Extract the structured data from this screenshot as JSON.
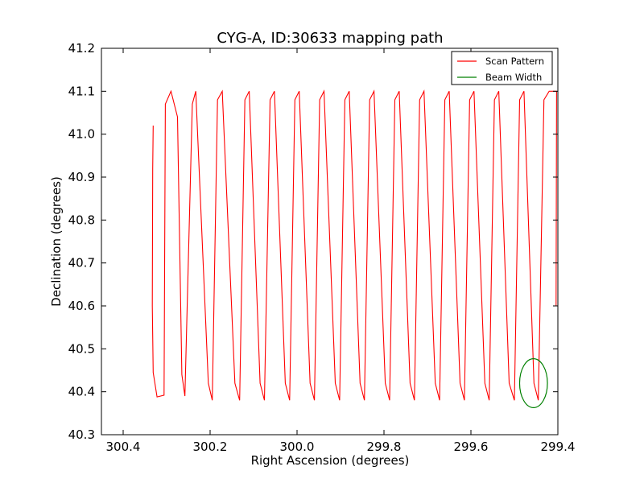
{
  "chart_data": {
    "type": "line",
    "title": "CYG-A, ID:30633 mapping path",
    "xlabel": "Right Ascension (degrees)",
    "ylabel": "Declination (degrees)",
    "xlim": [
      300.45,
      299.4
    ],
    "ylim": [
      40.3,
      41.2
    ],
    "x_ticks": [
      300.4,
      300.2,
      300.0,
      299.8,
      299.6,
      299.4
    ],
    "x_tick_labels": [
      "300.4",
      "300.2",
      "300.0",
      "299.8",
      "299.6",
      "299.4"
    ],
    "y_ticks": [
      40.3,
      40.4,
      40.5,
      40.6,
      40.7,
      40.8,
      40.9,
      41.0,
      41.1,
      41.2
    ],
    "y_tick_labels": [
      "40.3",
      "40.4",
      "40.5",
      "40.6",
      "40.7",
      "40.8",
      "40.9",
      "41.0",
      "41.1",
      "41.2"
    ],
    "grid": false,
    "legend_position": "top-right",
    "series": [
      {
        "name": "Scan Pattern",
        "color": "#ff0000",
        "points": [
          [
            300.331,
            41.02
          ],
          [
            300.332,
            40.92
          ],
          [
            300.333,
            40.6
          ],
          [
            300.331,
            40.445
          ],
          [
            300.322,
            40.388
          ],
          [
            300.306,
            40.392
          ],
          [
            300.303,
            41.07
          ],
          [
            300.29,
            41.1
          ],
          [
            300.275,
            41.04
          ],
          [
            300.265,
            40.44
          ],
          [
            300.258,
            40.39
          ],
          [
            300.241,
            41.07
          ],
          [
            300.233,
            41.1
          ],
          [
            300.204,
            40.42
          ],
          [
            300.195,
            40.38
          ],
          [
            300.183,
            41.08
          ],
          [
            300.172,
            41.1
          ],
          [
            300.143,
            40.42
          ],
          [
            300.132,
            40.38
          ],
          [
            300.12,
            41.08
          ],
          [
            300.11,
            41.1
          ],
          [
            300.085,
            40.42
          ],
          [
            300.075,
            40.38
          ],
          [
            300.062,
            41.08
          ],
          [
            300.052,
            41.1
          ],
          [
            300.027,
            40.42
          ],
          [
            300.017,
            40.38
          ],
          [
            300.005,
            41.08
          ],
          [
            299.995,
            41.1
          ],
          [
            299.97,
            40.42
          ],
          [
            299.96,
            40.38
          ],
          [
            299.948,
            41.08
          ],
          [
            299.938,
            41.1
          ],
          [
            299.912,
            40.42
          ],
          [
            299.902,
            40.38
          ],
          [
            299.89,
            41.08
          ],
          [
            299.88,
            41.1
          ],
          [
            299.855,
            40.42
          ],
          [
            299.845,
            40.38
          ],
          [
            299.833,
            41.08
          ],
          [
            299.823,
            41.1
          ],
          [
            299.797,
            40.42
          ],
          [
            299.787,
            40.38
          ],
          [
            299.775,
            41.08
          ],
          [
            299.765,
            41.1
          ],
          [
            299.74,
            40.42
          ],
          [
            299.73,
            40.38
          ],
          [
            299.718,
            41.08
          ],
          [
            299.708,
            41.1
          ],
          [
            299.682,
            40.42
          ],
          [
            299.672,
            40.38
          ],
          [
            299.66,
            41.08
          ],
          [
            299.65,
            41.1
          ],
          [
            299.625,
            40.42
          ],
          [
            299.615,
            40.38
          ],
          [
            299.603,
            41.08
          ],
          [
            299.593,
            41.1
          ],
          [
            299.568,
            40.42
          ],
          [
            299.558,
            40.38
          ],
          [
            299.546,
            41.08
          ],
          [
            299.536,
            41.1
          ],
          [
            299.512,
            40.42
          ],
          [
            299.5,
            40.38
          ],
          [
            299.488,
            41.08
          ],
          [
            299.478,
            41.1
          ],
          [
            299.455,
            40.42
          ],
          [
            299.445,
            40.38
          ],
          [
            299.432,
            41.08
          ],
          [
            299.42,
            41.1
          ],
          [
            299.403,
            41.1
          ],
          [
            299.404,
            40.6
          ]
        ]
      },
      {
        "name": "Beam Width",
        "color": "#008000",
        "center": [
          299.456,
          40.42
        ],
        "radius_x": 0.032,
        "radius_y": 0.057
      }
    ]
  }
}
